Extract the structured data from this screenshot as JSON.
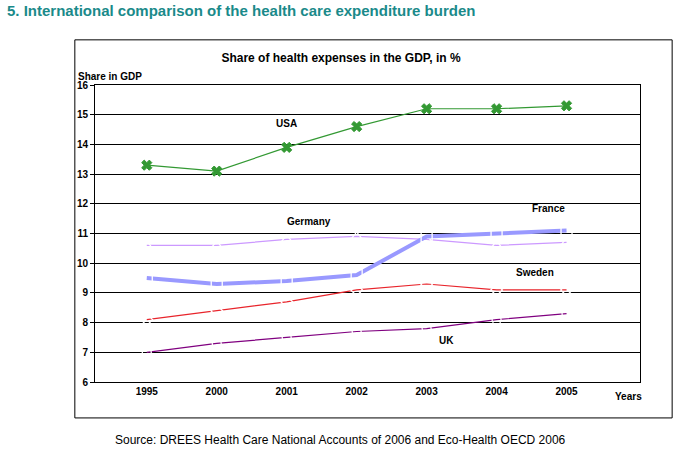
{
  "chart_data": {
    "type": "line",
    "heading": "5. International comparison of the health care expenditure burden",
    "title": "Share of health expenses in the GDP, in %",
    "y_label": "Share in GDP",
    "x_label": "Years",
    "source": "Source: DREES Health Care National Accounts of 2006 and Eco-Health OECD 2006",
    "categories": [
      "1995",
      "2000",
      "2001",
      "2002",
      "2003",
      "2004",
      "2005"
    ],
    "series": [
      {
        "name": "USA",
        "color": "#339933",
        "marker": "x",
        "line_style": "solid",
        "values": [
          13.3,
          13.1,
          13.9,
          14.6,
          15.2,
          15.2,
          15.3
        ]
      },
      {
        "name": "Germany",
        "color": "#cc99ff",
        "marker": "triangle-up-open",
        "line_style": "solid",
        "values": [
          10.6,
          10.6,
          10.8,
          10.9,
          10.8,
          10.6,
          10.7
        ]
      },
      {
        "name": "France",
        "color": "#9999ff",
        "marker": "square-open",
        "line_style": "thick",
        "values": [
          9.5,
          9.3,
          9.4,
          9.6,
          10.9,
          11.0,
          11.1
        ]
      },
      {
        "name": "Sweden",
        "color": "#e8242b",
        "marker": "diamond-open",
        "line_style": "solid",
        "values": [
          8.1,
          8.4,
          8.7,
          9.1,
          9.3,
          9.1,
          9.1
        ]
      },
      {
        "name": "UK",
        "color": "#800080",
        "marker": "circle-open",
        "line_style": "solid",
        "values": [
          7.0,
          7.3,
          7.5,
          7.7,
          7.8,
          8.1,
          8.3
        ]
      }
    ],
    "ylim": [
      6,
      16
    ],
    "yticks": [
      6,
      7,
      8,
      9,
      10,
      11,
      12,
      13,
      14,
      15,
      16
    ],
    "grid": true
  }
}
